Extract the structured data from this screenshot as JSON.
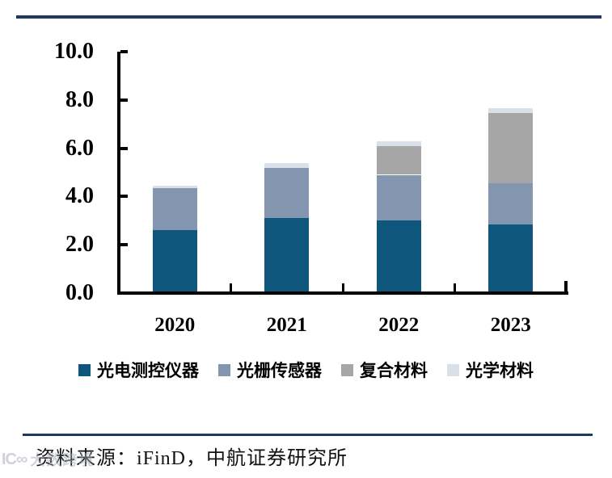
{
  "page": {
    "source_note": "资料来源：iFinD，中航证券研究所",
    "watermark_logo": "IC∞",
    "watermark_text": "大数跨境",
    "rule_color": "#1f3864"
  },
  "chart_data": {
    "type": "bar",
    "stacked": true,
    "title": "",
    "xlabel": "",
    "ylabel": "",
    "categories": [
      "2020",
      "2021",
      "2022",
      "2023"
    ],
    "series": [
      {
        "name": "光电测控仪器",
        "color": "#0e567c",
        "values": [
          2.6,
          3.1,
          3.0,
          2.85
        ]
      },
      {
        "name": "光栅传感器",
        "color": "#8495af",
        "values": [
          1.75,
          2.1,
          1.9,
          1.7
        ]
      },
      {
        "name": "复合材料",
        "color": "#a6a6a6",
        "values": [
          0,
          0,
          1.2,
          2.9
        ]
      },
      {
        "name": "光学材料",
        "color": "#dae0ea",
        "values": [
          0.1,
          0.2,
          0.2,
          0.2
        ]
      }
    ],
    "totals": [
      4.45,
      5.4,
      6.3,
      7.65
    ],
    "ylim": [
      0,
      10
    ],
    "ytick_step": 2,
    "ytick_labels": [
      "0.0",
      "2.0",
      "4.0",
      "6.0",
      "8.0",
      "10.0"
    ],
    "grid": false,
    "legend_position": "bottom",
    "axis_color": "#000000"
  }
}
